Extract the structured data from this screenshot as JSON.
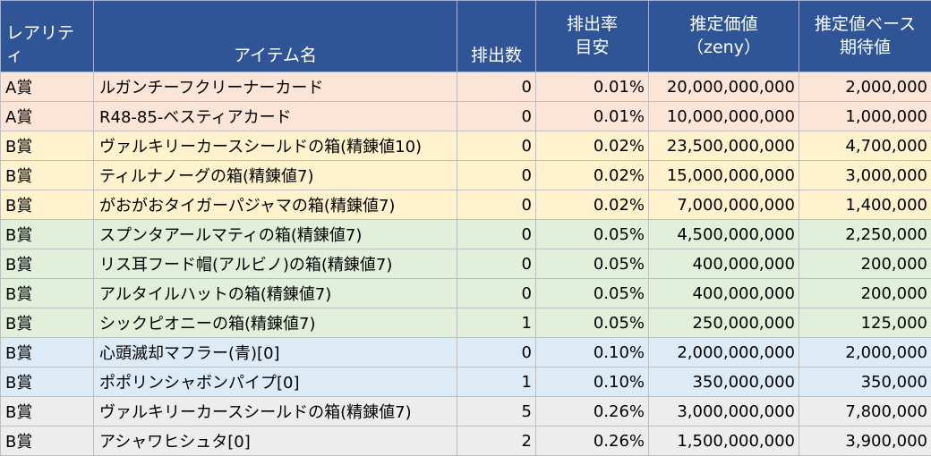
{
  "header": {
    "rarity": "レアリティ",
    "item_name": "アイテム名",
    "count": "排出数",
    "rate_line1": "排出率",
    "rate_line2": "目安",
    "price_line1": "推定価値",
    "price_line2": "（zeny）",
    "expected_line1": "推定値ベース",
    "expected_line2": "期待値"
  },
  "rows": [
    {
      "rarity": "A賞",
      "name": "ルガンチーフクリーナーカード",
      "count": "0",
      "rate": "0.01%",
      "price": "20,000,000,000",
      "expected": "2,000,000",
      "band": "pink"
    },
    {
      "rarity": "A賞",
      "name": "R48-85-ベスティアカード",
      "count": "0",
      "rate": "0.01%",
      "price": "10,000,000,000",
      "expected": "1,000,000",
      "band": "pink"
    },
    {
      "rarity": "B賞",
      "name": "ヴァルキリーカースシールドの箱(精錬値10)",
      "count": "0",
      "rate": "0.02%",
      "price": "23,500,000,000",
      "expected": "4,700,000",
      "band": "yellow"
    },
    {
      "rarity": "B賞",
      "name": "ティルナノーグの箱(精錬値7)",
      "count": "0",
      "rate": "0.02%",
      "price": "15,000,000,000",
      "expected": "3,000,000",
      "band": "yellow"
    },
    {
      "rarity": "B賞",
      "name": "がおがおタイガーパジャマの箱(精錬値7)",
      "count": "0",
      "rate": "0.02%",
      "price": "7,000,000,000",
      "expected": "1,400,000",
      "band": "yellow"
    },
    {
      "rarity": "B賞",
      "name": "スプンタアールマティの箱(精錬値7)",
      "count": "0",
      "rate": "0.05%",
      "price": "4,500,000,000",
      "expected": "2,250,000",
      "band": "green"
    },
    {
      "rarity": "B賞",
      "name": "リス耳フード帽(アルビノ)の箱(精錬値7)",
      "count": "0",
      "rate": "0.05%",
      "price": "400,000,000",
      "expected": "200,000",
      "band": "green"
    },
    {
      "rarity": "B賞",
      "name": "アルタイルハットの箱(精錬値7)",
      "count": "0",
      "rate": "0.05%",
      "price": "400,000,000",
      "expected": "200,000",
      "band": "green"
    },
    {
      "rarity": "B賞",
      "name": "シックピオニーの箱(精錬値7)",
      "count": "1",
      "rate": "0.05%",
      "price": "250,000,000",
      "expected": "125,000",
      "band": "green"
    },
    {
      "rarity": "B賞",
      "name": "心頭滅却マフラー(青)[0]",
      "count": "0",
      "rate": "0.10%",
      "price": "2,000,000,000",
      "expected": "2,000,000",
      "band": "blue"
    },
    {
      "rarity": "B賞",
      "name": "ポポリンシャボンパイプ[0]",
      "count": "1",
      "rate": "0.10%",
      "price": "350,000,000",
      "expected": "350,000",
      "band": "blue"
    },
    {
      "rarity": "B賞",
      "name": "ヴァルキリーカースシールドの箱(精錬値7)",
      "count": "5",
      "rate": "0.26%",
      "price": "3,000,000,000",
      "expected": "7,800,000",
      "band": "gray"
    },
    {
      "rarity": "B賞",
      "name": "アシャワヒシュタ[0]",
      "count": "2",
      "rate": "0.26%",
      "price": "1,500,000,000",
      "expected": "3,900,000",
      "band": "gray"
    }
  ]
}
